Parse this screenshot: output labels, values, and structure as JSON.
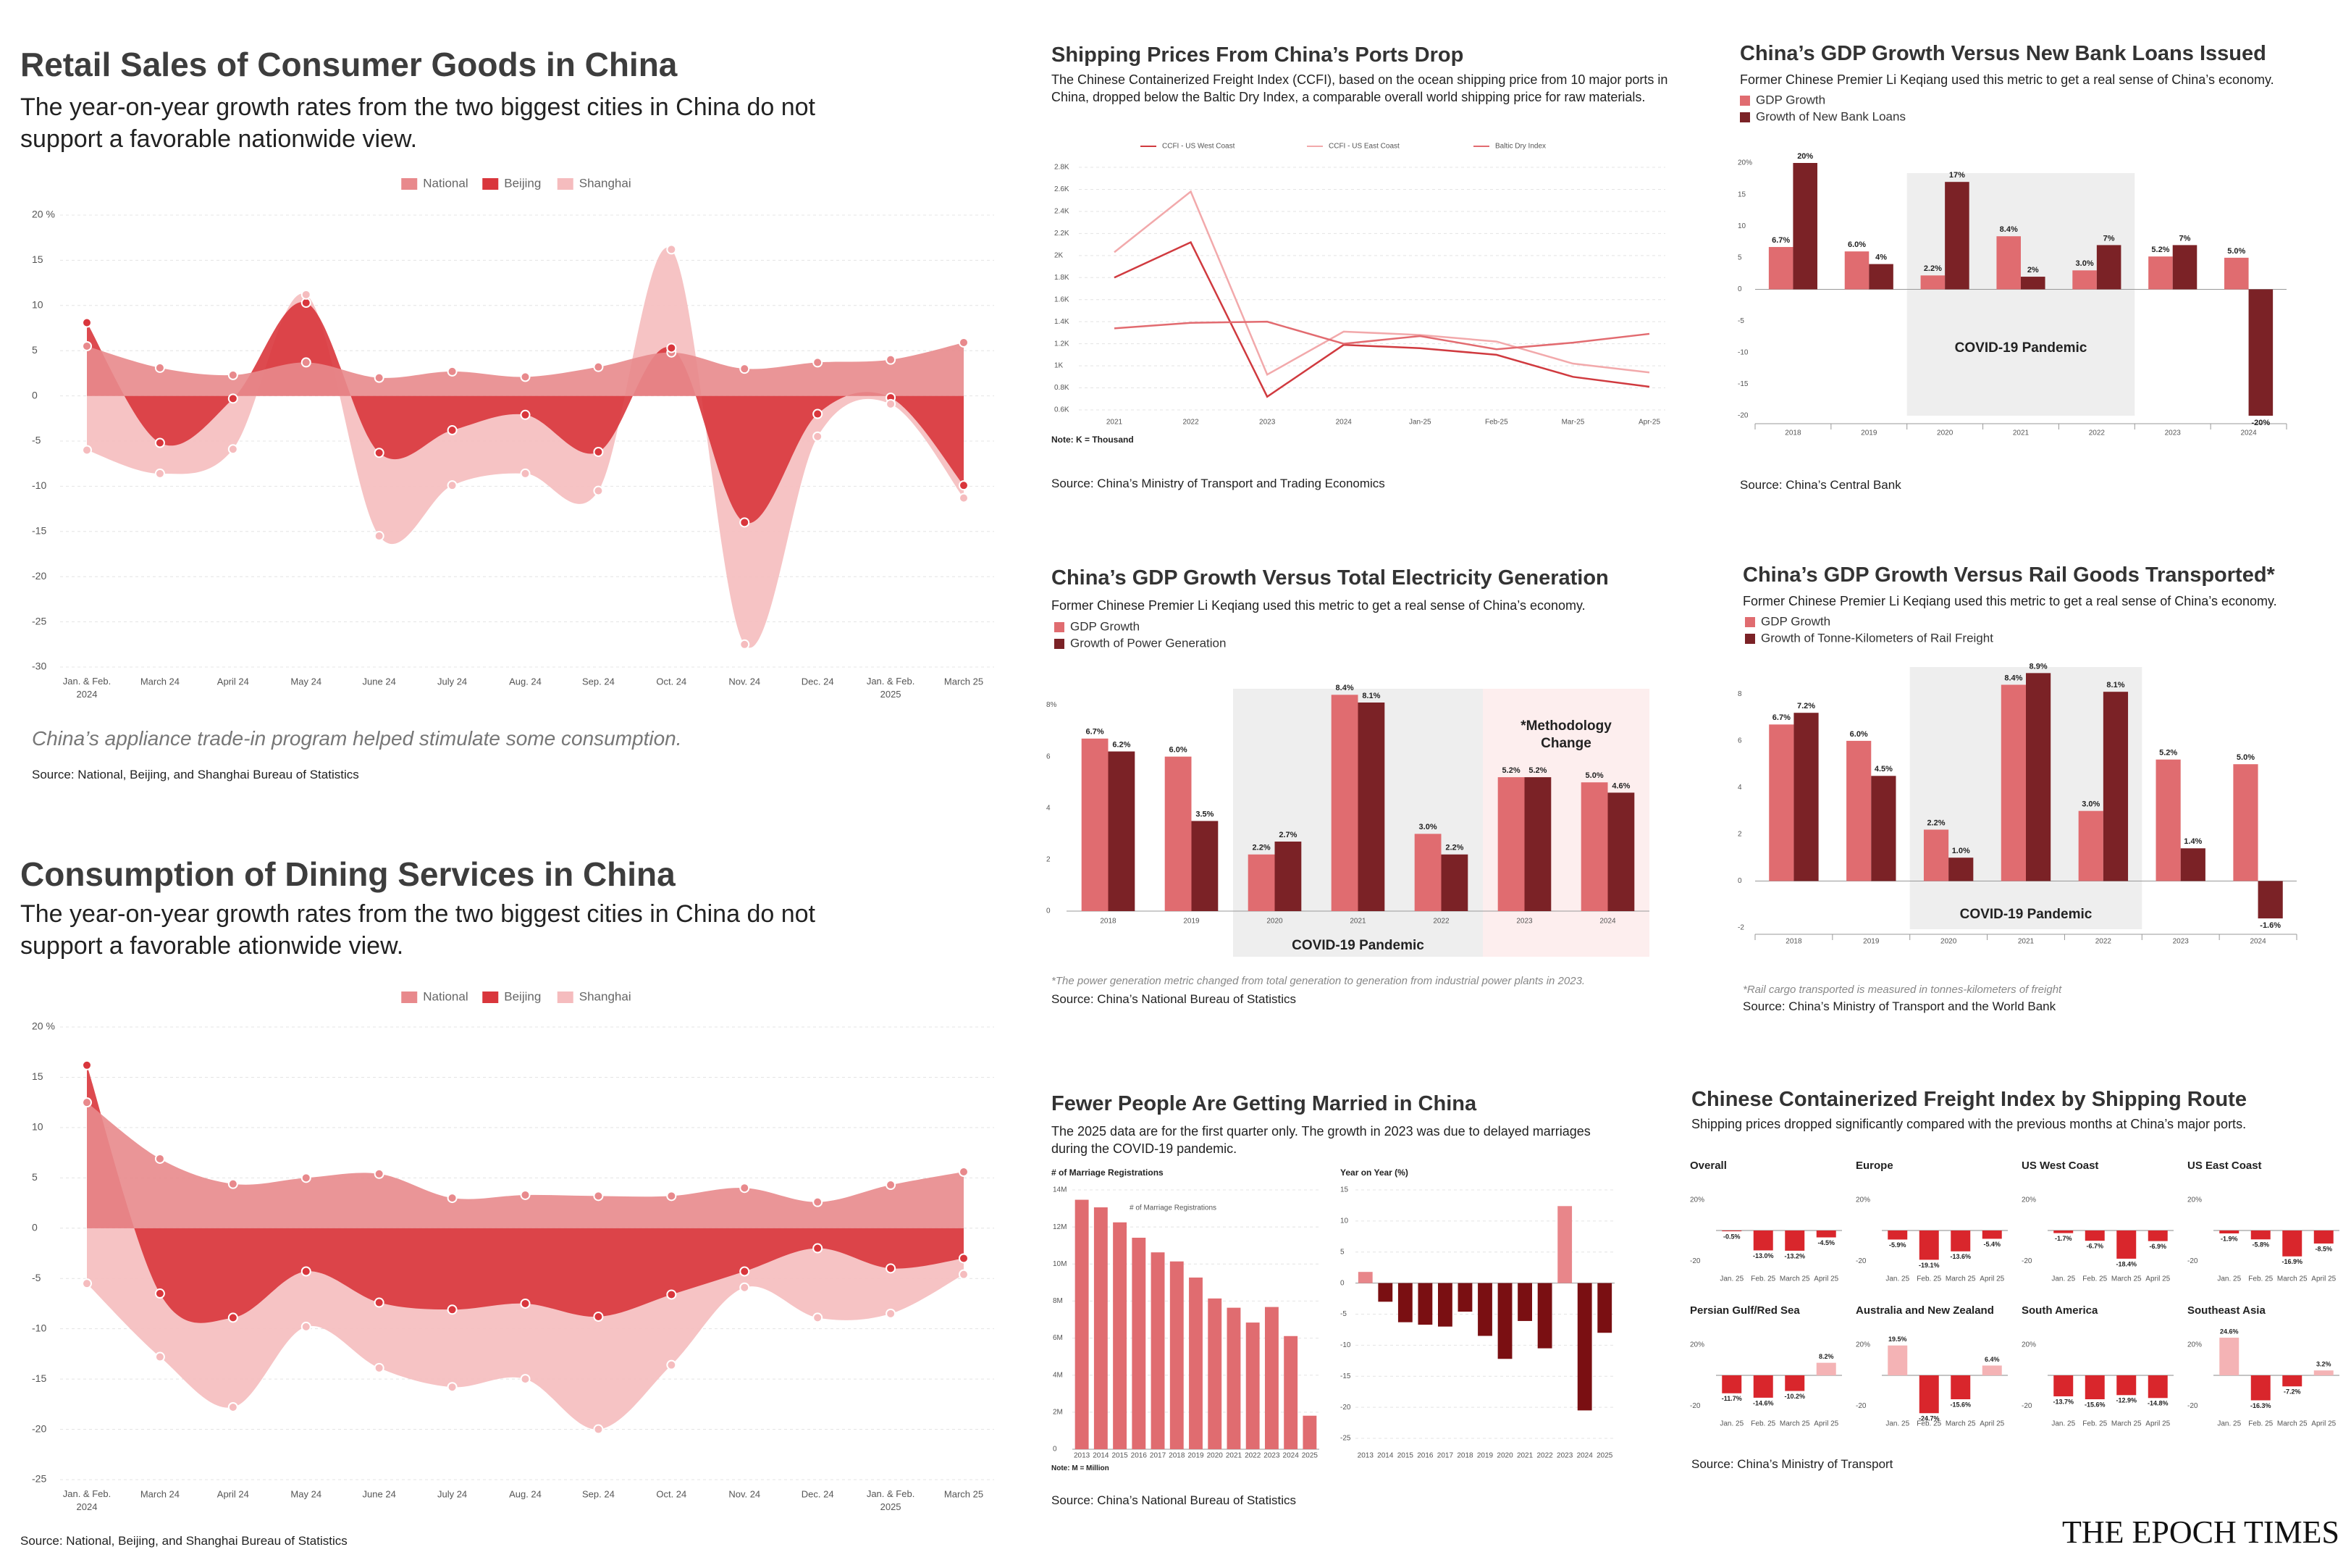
{
  "brand": "THE EPOCH TIMES",
  "chart_data": [
    {
      "type": "area",
      "title": "Retail Sales of Consumer Goods in China",
      "subtitle": "The year-on-year growth rates from the two biggest cities in China do not support a favorable nationwide view.",
      "annotation": "China’s appliance trade-in program helped stimulate some consumption.",
      "source": "Source: National, Beijing, and Shanghai Bureau of Statistics",
      "categories": [
        "Jan. & Feb. 2024",
        "March 24",
        "April 24",
        "May 24",
        "June 24",
        "July 24",
        "Aug. 24",
        "Sep. 24",
        "Oct. 24",
        "Nov. 24",
        "Dec. 24",
        "Jan. & Feb. 2025",
        "March 25"
      ],
      "series": [
        {
          "name": "National",
          "color": "#e8898c",
          "values": [
            5.5,
            3.1,
            2.3,
            3.7,
            2.0,
            2.7,
            2.1,
            3.2,
            4.8,
            3.0,
            3.7,
            4.0,
            5.9
          ]
        },
        {
          "name": "Beijing",
          "color": "#d9363c",
          "values": [
            8.1,
            -5.2,
            -0.3,
            10.3,
            -6.3,
            -3.8,
            -2.1,
            -6.2,
            5.3,
            -14.0,
            -2.0,
            -0.2,
            -9.9
          ]
        },
        {
          "name": "Shanghai",
          "color": "#f5bcbe",
          "values": [
            -6.0,
            -8.6,
            -5.9,
            11.2,
            -15.5,
            -9.9,
            -8.6,
            -10.5,
            16.2,
            -27.5,
            -4.5,
            -0.9,
            -11.3
          ]
        }
      ],
      "ylim": [
        -30,
        20
      ],
      "yticks": [
        -30,
        -25,
        -20,
        -15,
        -10,
        -5,
        0,
        5,
        10,
        15,
        {
          "value": 20,
          "label": "20 %"
        }
      ],
      "grid": true
    },
    {
      "type": "area",
      "title": "Consumption of Dining Services in China",
      "subtitle": "The year-on-year growth rates from the two biggest cities in China do not support a favorable ationwide view.",
      "source": "Source: National, Beijing, and Shanghai Bureau of Statistics",
      "categories": [
        "Jan. & Feb. 2024",
        "March 24",
        "April 24",
        "May 24",
        "June 24",
        "July 24",
        "Aug. 24",
        "Sep. 24",
        "Oct. 24",
        "Nov. 24",
        "Dec. 24",
        "Jan. & Feb. 2025",
        "March 25"
      ],
      "series": [
        {
          "name": "National",
          "color": "#e8898c",
          "values": [
            12.5,
            6.9,
            4.4,
            5.0,
            5.4,
            3.0,
            3.3,
            3.2,
            3.2,
            4.0,
            2.6,
            4.3,
            5.6
          ]
        },
        {
          "name": "Beijing",
          "color": "#d9363c",
          "values": [
            16.2,
            -6.5,
            -8.9,
            -4.3,
            -7.4,
            -8.1,
            -7.5,
            -8.8,
            -6.6,
            -4.3,
            -2.0,
            -4.0,
            -3.0
          ]
        },
        {
          "name": "Shanghai",
          "color": "#f5bcbe",
          "values": [
            -5.5,
            -12.8,
            -17.8,
            -9.8,
            -13.9,
            -15.8,
            -15.0,
            -20.0,
            -13.6,
            -5.9,
            -8.9,
            -8.5,
            -4.6
          ]
        }
      ],
      "ylim": [
        -25,
        20
      ],
      "yticks": [
        -25,
        -20,
        -15,
        -10,
        -5,
        0,
        5,
        10,
        15,
        {
          "value": 20,
          "label": "20 %"
        }
      ],
      "grid": true
    },
    {
      "type": "line",
      "title": "Shipping Prices From China’s Ports Drop",
      "subtitle": "The Chinese Containerized Freight Index (CCFI), based on the ocean shipping price from 10 major ports in China, dropped below the Baltic Dry Index, a comparable overall world shipping price for raw materials.",
      "note": "Note: K = Thousand",
      "source": "Source: China’s Ministry of Transport and Trading Economics",
      "categories": [
        "2021",
        "2022",
        "2023",
        "2024",
        "Jan-25",
        "Feb-25",
        "Mar-25",
        "Apr-25"
      ],
      "series": [
        {
          "name": "CCFI - US West Coast",
          "color": "#d03a3f",
          "values": [
            1800,
            2120,
            720,
            1190,
            1160,
            1100,
            900,
            810
          ]
        },
        {
          "name": "CCFI - US East Coast",
          "color": "#f2a9ab",
          "values": [
            2030,
            2580,
            920,
            1310,
            1280,
            1220,
            1020,
            940
          ]
        },
        {
          "name": "Baltic Dry Index",
          "color": "#e26b70",
          "values": [
            1340,
            1390,
            1400,
            1200,
            1270,
            1150,
            1210,
            1290
          ]
        }
      ],
      "ylim": [
        600,
        2800
      ],
      "yticks": [
        {
          "value": 600,
          "label": "0.6K"
        },
        {
          "value": 800,
          "label": "0.8K"
        },
        {
          "value": 1000,
          "label": "1K"
        },
        {
          "value": 1200,
          "label": "1.2K"
        },
        {
          "value": 1400,
          "label": "1.4K"
        },
        {
          "value": 1600,
          "label": "1.6K"
        },
        {
          "value": 1800,
          "label": "1.8K"
        },
        {
          "value": 2000,
          "label": "2K"
        },
        {
          "value": 2200,
          "label": "2.2K"
        },
        {
          "value": 2400,
          "label": "2.4K"
        },
        {
          "value": 2600,
          "label": "2.6K"
        },
        {
          "value": 2800,
          "label": "2.8K"
        }
      ],
      "grid": true
    },
    {
      "type": "bar",
      "title": "China’s GDP Growth Versus New Bank Loans Issued",
      "subtitle": "Former Chinese Premier Li Keqiang used this metric to get a real sense of China’s economy.",
      "source": "Source: China’s Central Bank",
      "categories": [
        "2018",
        "2019",
        "2020",
        "2021",
        "2022",
        "2023",
        "2024"
      ],
      "series": [
        {
          "name": "GDP Growth",
          "color": "#e06c70",
          "values": [
            6.7,
            6.0,
            2.2,
            8.4,
            3.0,
            5.2,
            5.0
          ],
          "value_labels": [
            "6.7%",
            "6.0%",
            "2.2%",
            "8.4%",
            "3.0%",
            "5.2%",
            "5.0%"
          ]
        },
        {
          "name": "Growth of New Bank Loans",
          "color": "#7b2226",
          "values": [
            20,
            4,
            17,
            2,
            7,
            7,
            -20
          ],
          "value_labels": [
            "20%",
            "4%",
            "17%",
            "2%",
            "7%",
            "7%",
            "-20%"
          ]
        }
      ],
      "shaded": [
        {
          "label": "COVID-19 Pandemic",
          "span": [
            "2020",
            "2022"
          ],
          "color": "#eeeeee"
        }
      ],
      "ylim": [
        -20,
        20
      ],
      "yticks": [
        -20,
        -15,
        -10,
        -5,
        0,
        5,
        10,
        15,
        {
          "value": 20,
          "label": "20%"
        }
      ],
      "grid": false
    },
    {
      "type": "bar",
      "title": "China’s GDP Growth Versus Total Electricity Generation",
      "subtitle": "Former Chinese Premier Li Keqiang used this metric to get a real sense of China’s economy.",
      "footnote": "*The power generation metric changed from total generation to generation from industrial power plants in 2023.",
      "source": "Source: China’s National Bureau of Statistics",
      "categories": [
        "2018",
        "2019",
        "2020",
        "2021",
        "2022",
        "2023",
        "2024"
      ],
      "series": [
        {
          "name": "GDP Growth",
          "color": "#e06c70",
          "values": [
            6.7,
            6.0,
            2.2,
            8.4,
            3.0,
            5.2,
            5.0
          ],
          "value_labels": [
            "6.7%",
            "6.0%",
            "2.2%",
            "8.4%",
            "3.0%",
            "5.2%",
            "5.0%"
          ]
        },
        {
          "name": "Growth of Power Generation",
          "color": "#7b2226",
          "values": [
            6.2,
            3.5,
            2.7,
            8.1,
            2.2,
            5.2,
            4.6
          ],
          "value_labels": [
            "6.2%",
            "3.5%",
            "2.7%",
            "8.1%",
            "2.2%",
            "5.2%",
            "4.6%"
          ]
        }
      ],
      "shaded": [
        {
          "label": "COVID-19 Pandemic",
          "span": [
            "2020",
            "2022"
          ],
          "color": "#eeeeee"
        },
        {
          "label": "*Methodology Change",
          "span": [
            "2023",
            "2024"
          ],
          "color": "#fdeeee"
        }
      ],
      "ylim": [
        0,
        9
      ],
      "yticks": [
        0,
        2,
        4,
        6,
        {
          "value": 8,
          "label": "8%"
        }
      ],
      "grid": false
    },
    {
      "type": "bar",
      "title": "China’s GDP Growth Versus Rail Goods Transported*",
      "subtitle": "Former Chinese Premier Li Keqiang used this metric to get a real sense of China’s economy.",
      "footnote": "*Rail cargo transported is measured in tonnes-kilometers of freight",
      "source": "Source: China’s Ministry of Transport and the World Bank",
      "categories": [
        "2018",
        "2019",
        "2020",
        "2021",
        "2022",
        "2023",
        "2024"
      ],
      "series": [
        {
          "name": "GDP Growth",
          "color": "#e06c70",
          "values": [
            6.7,
            6.0,
            2.2,
            8.4,
            3.0,
            5.2,
            5.0
          ],
          "value_labels": [
            "6.7%",
            "6.0%",
            "2.2%",
            "8.4%",
            "3.0%",
            "5.2%",
            "5.0%"
          ]
        },
        {
          "name": "Growth of Tonne-Kilometers of Rail Freight",
          "color": "#7b2226",
          "values": [
            7.2,
            4.5,
            1.0,
            8.9,
            8.1,
            1.4,
            -1.6
          ],
          "value_labels": [
            "7.2%",
            "4.5%",
            "1.0%",
            "8.9%",
            "8.1%",
            "1.4%",
            "-1.6%"
          ]
        }
      ],
      "shaded": [
        {
          "label": "COVID-19 Pandemic",
          "span": [
            "2020",
            "2022"
          ],
          "color": "#eeeeee"
        }
      ],
      "ylim": [
        -2,
        9.5
      ],
      "yticks": [
        -2,
        0,
        2,
        4,
        6,
        8
      ],
      "grid": false
    },
    {
      "type": "bar",
      "title": "Fewer People Are Getting Married in China",
      "subtitle": "The 2025 data are for the first quarter only. The growth in 2023 was due to delayed marriages during the COVID-19 pandemic.",
      "panel_label": "# of Marriage Registrations",
      "legend": "# of Marriage Registrations",
      "note": "Note: M = Million",
      "source": "Source: China’s National Bureau of Statistics",
      "categories": [
        "2013",
        "2014",
        "2015",
        "2016",
        "2017",
        "2018",
        "2019",
        "2020",
        "2021",
        "2022",
        "2023",
        "2024",
        "2025"
      ],
      "values": [
        13.47,
        13.06,
        12.25,
        11.42,
        10.63,
        10.14,
        9.27,
        8.14,
        7.64,
        6.84,
        7.68,
        6.11,
        1.81
      ],
      "color": "#e06c70",
      "ylim": [
        0,
        14
      ],
      "yticks": [
        0,
        {
          "value": 2,
          "label": "2M"
        },
        {
          "value": 4,
          "label": "4M"
        },
        {
          "value": 6,
          "label": "6M"
        },
        {
          "value": 8,
          "label": "8M"
        },
        {
          "value": 10,
          "label": "10M"
        },
        {
          "value": 12,
          "label": "12M"
        },
        {
          "value": 14,
          "label": "14M"
        }
      ],
      "grid": true
    },
    {
      "type": "bar",
      "panel_label": "Year on Year (%)",
      "categories": [
        "2013",
        "2014",
        "2015",
        "2016",
        "2017",
        "2018",
        "2019",
        "2020",
        "2021",
        "2022",
        "2023",
        "2024",
        "2025"
      ],
      "values": [
        1.8,
        -3.0,
        -6.3,
        -6.7,
        -7.0,
        -4.6,
        -8.5,
        -12.2,
        -6.1,
        -10.5,
        12.4,
        -20.5,
        -8.0
      ],
      "color": "#e8868a",
      "negative_color": "#7a0f12",
      "ylim": [
        -25,
        15
      ],
      "yticks": [
        -25,
        -20,
        -15,
        -10,
        -5,
        0,
        5,
        10,
        15
      ],
      "grid": true
    },
    {
      "type": "bar",
      "title": "Chinese Containerized Freight Index by Shipping Route",
      "subtitle": "Shipping prices dropped significantly compared with the previous months at China’s major ports.",
      "source": "Source: China’s Ministry of Transport",
      "categories": [
        "Jan. 25",
        "Feb. 25",
        "March 25",
        "April 25"
      ],
      "color": "#f4b3b5",
      "negative_color": "#d9262c",
      "ylim": [
        -26,
        26
      ],
      "yticks": [
        {
          "value": 20,
          "label": "20%"
        },
        -20
      ],
      "panels": [
        {
          "name": "Overall",
          "values": [
            -0.5,
            -13.0,
            -13.2,
            -4.5
          ],
          "value_labels": [
            "-0.5%",
            "-13.0%",
            "-13.2%",
            "-4.5%"
          ]
        },
        {
          "name": "Europe",
          "values": [
            -5.9,
            -19.1,
            -13.6,
            -5.4
          ],
          "value_labels": [
            "-5.9%",
            "-19.1%",
            "-13.6%",
            "-5.4%"
          ]
        },
        {
          "name": "US West Coast",
          "values": [
            -1.7,
            -6.7,
            -18.4,
            -6.9
          ],
          "value_labels": [
            "-1.7%",
            "-6.7%",
            "-18.4%",
            "-6.9%"
          ]
        },
        {
          "name": "US East Coast",
          "values": [
            -1.9,
            -5.8,
            -16.9,
            -8.5
          ],
          "value_labels": [
            "-1.9%",
            "-5.8%",
            "-16.9%",
            "-8.5%"
          ]
        },
        {
          "name": "Persian Gulf/Red Sea",
          "values": [
            -11.7,
            -14.6,
            -10.2,
            8.2
          ],
          "value_labels": [
            "-11.7%",
            "-14.6%",
            "-10.2%",
            "8.2%"
          ]
        },
        {
          "name": "Australia and New Zealand",
          "values": [
            19.5,
            -24.7,
            -15.6,
            6.4
          ],
          "value_labels": [
            "19.5%",
            "-24.7%",
            "-15.6%",
            "6.4%"
          ]
        },
        {
          "name": "South America",
          "values": [
            -13.7,
            -15.6,
            -12.9,
            -14.8
          ],
          "value_labels": [
            "-13.7%",
            "-15.6%",
            "-12.9%",
            "-14.8%"
          ]
        },
        {
          "name": "Southeast Asia",
          "values": [
            24.6,
            -16.3,
            -7.2,
            3.2
          ],
          "value_labels": [
            "24.6%",
            "-16.3%",
            "-7.2%",
            "3.2%"
          ]
        }
      ]
    }
  ]
}
